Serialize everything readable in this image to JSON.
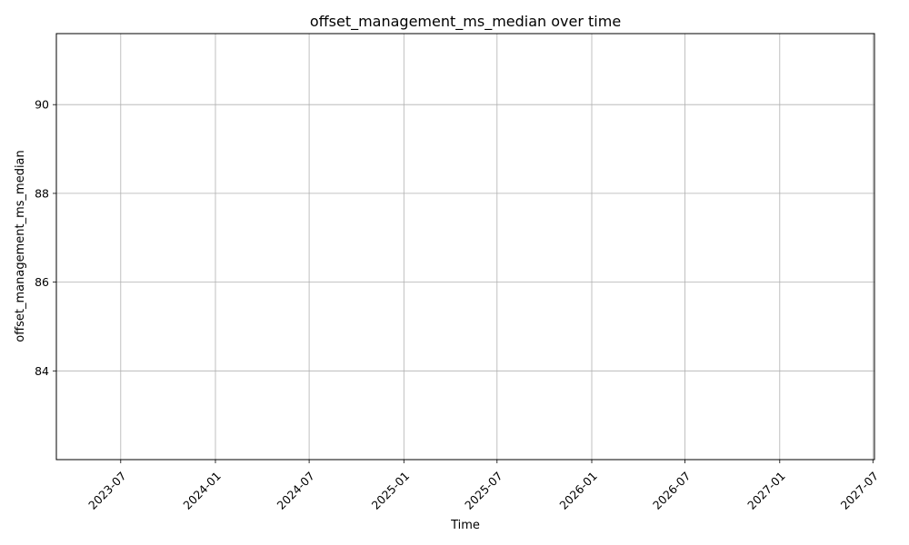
{
  "chart_data": {
    "type": "line",
    "title": "offset_management_ms_median over time",
    "xlabel": "Time",
    "ylabel": "offset_management_ms_median",
    "x_ticks": [
      "2023-07",
      "2024-01",
      "2024-07",
      "2025-01",
      "2025-07",
      "2026-01",
      "2026-07",
      "2027-01",
      "2027-07"
    ],
    "y_ticks": [
      "84",
      "86",
      "88",
      "90"
    ],
    "xlim": [
      "2023-02-26",
      "2027-07-04"
    ],
    "ylim": [
      82.0,
      91.6
    ],
    "grid": true,
    "series": []
  }
}
